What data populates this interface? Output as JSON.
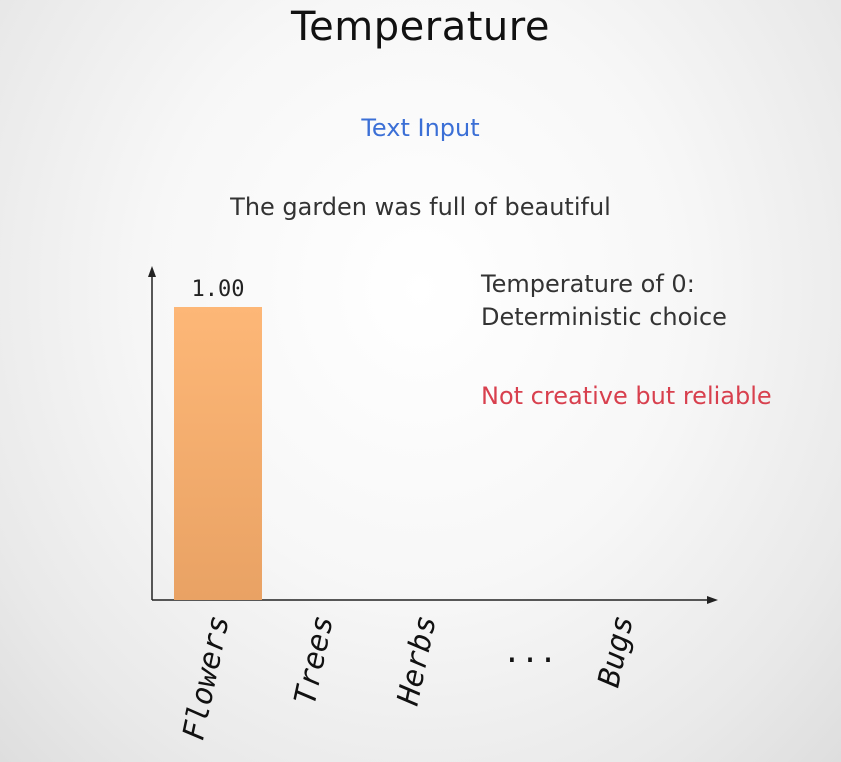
{
  "slide": {
    "title": "Temperature",
    "input_label": "Text Input",
    "input_text": "The garden was full of beautiful"
  },
  "notes": {
    "main": "Temperature of 0: Deterministic choice",
    "emphasis": "Not creative but reliable"
  },
  "colors": {
    "bar_top": "#fdb777",
    "bar_bottom": "#e9a264",
    "accent_blue": "#3b6fd6",
    "accent_red": "#d8404e"
  },
  "chart_data": {
    "type": "bar",
    "categories": [
      "Flowers",
      "Trees",
      "Herbs",
      "...",
      "Bugs"
    ],
    "values": [
      1.0,
      0,
      0,
      0,
      0
    ],
    "value_labels": [
      "1.00",
      "",
      "",
      "",
      ""
    ],
    "ylim": [
      0,
      1.0
    ],
    "grid": false,
    "xlabel": "",
    "ylabel": ""
  }
}
